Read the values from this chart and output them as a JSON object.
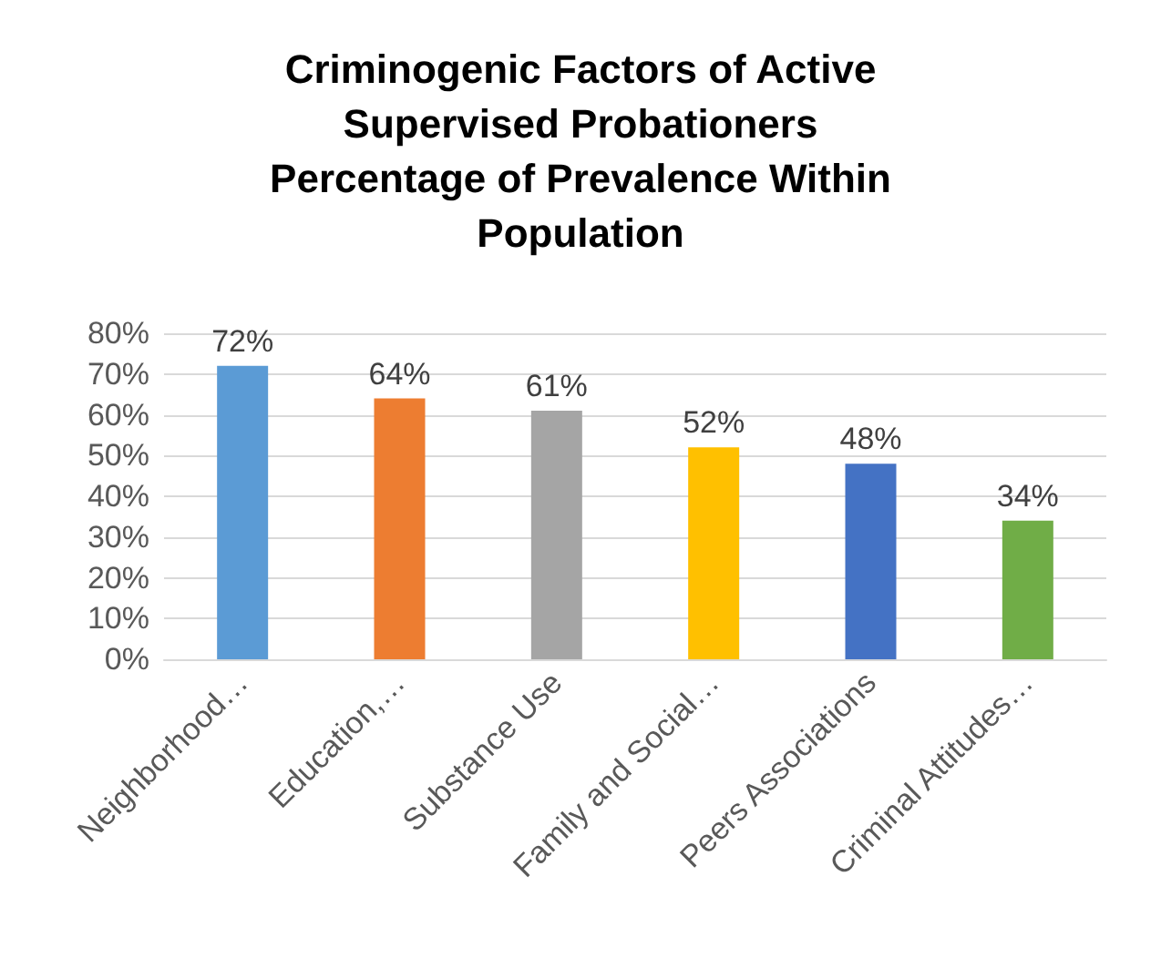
{
  "chart_data": {
    "type": "bar",
    "title": "Criminogenic Factors of Active\nSupervised Probationers\nPercentage of Prevalence Within\nPopulation",
    "categories": [
      "Neighborhood…",
      "Education,…",
      "Substance Use",
      "Family and Social…",
      "Peers Associations",
      "Criminal Attitudes…"
    ],
    "values": [
      72,
      64,
      61,
      52,
      48,
      34
    ],
    "value_labels": [
      "72%",
      "64%",
      "61%",
      "52%",
      "48%",
      "34%"
    ],
    "colors": [
      "#5b9bd5",
      "#ed7d31",
      "#a5a5a5",
      "#ffc000",
      "#4472c4",
      "#70ad47"
    ],
    "ylim": [
      0,
      80
    ],
    "yticks": [
      {
        "value": 0,
        "label": "0%"
      },
      {
        "value": 10,
        "label": "10%"
      },
      {
        "value": 20,
        "label": "20%"
      },
      {
        "value": 30,
        "label": "30%"
      },
      {
        "value": 40,
        "label": "40%"
      },
      {
        "value": 50,
        "label": "50%"
      },
      {
        "value": 60,
        "label": "60%"
      },
      {
        "value": 70,
        "label": "70%"
      },
      {
        "value": 80,
        "label": "80%"
      }
    ],
    "grid": "y"
  }
}
